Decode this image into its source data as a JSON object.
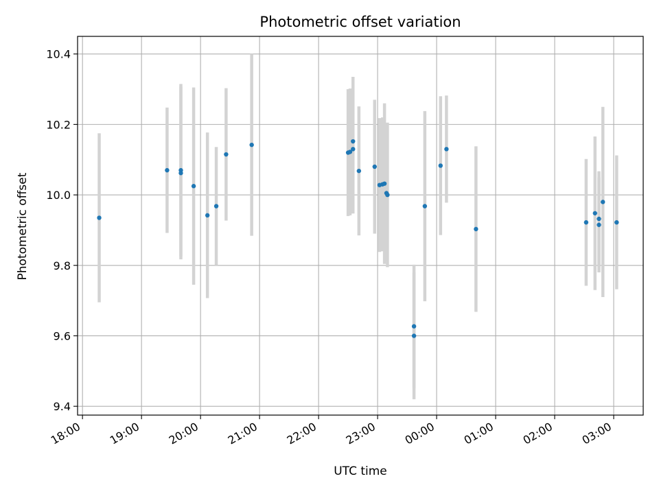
{
  "chart_data": {
    "type": "scatter",
    "title": "Photometric offset variation",
    "xlabel": "UTC time",
    "ylabel": "Photometric offset",
    "x_unit": "hours (datetime axis, crosses midnight)",
    "xlim": [
      "17:55",
      "03:30"
    ],
    "ylim": [
      9.375,
      10.45
    ],
    "x_ticks": [
      "18:00",
      "19:00",
      "20:00",
      "21:00",
      "22:00",
      "23:00",
      "00:00",
      "01:00",
      "02:00",
      "03:00"
    ],
    "y_ticks": [
      "9.4",
      "9.6",
      "9.8",
      "10.0",
      "10.2",
      "10.4"
    ],
    "grid": true,
    "colors": {
      "points": "#1f77b4",
      "error_bars": "#d3d3d3",
      "grid": "#b0b0b0"
    },
    "points": [
      {
        "t": "18:17",
        "y": 9.935,
        "err": 0.24
      },
      {
        "t": "19:26",
        "y": 10.07,
        "err": 0.178
      },
      {
        "t": "19:40",
        "y": 10.07,
        "err": 0.245
      },
      {
        "t": "19:40",
        "y": 10.062,
        "err": 0.245
      },
      {
        "t": "19:53",
        "y": 10.025,
        "err": 0.28
      },
      {
        "t": "20:07",
        "y": 9.942,
        "err": 0.235
      },
      {
        "t": "20:16",
        "y": 9.968,
        "err": 0.168
      },
      {
        "t": "20:26",
        "y": 10.115,
        "err": 0.188
      },
      {
        "t": "20:52",
        "y": 10.142,
        "err": 0.258
      },
      {
        "t": "22:30",
        "y": 10.12,
        "err": 0.18
      },
      {
        "t": "22:32",
        "y": 10.122,
        "err": 0.18
      },
      {
        "t": "22:35",
        "y": 10.152,
        "err": 0.183
      },
      {
        "t": "22:35",
        "y": 10.13,
        "err": 0.183
      },
      {
        "t": "22:41",
        "y": 10.068,
        "err": 0.183
      },
      {
        "t": "22:57",
        "y": 10.08,
        "err": 0.19
      },
      {
        "t": "23:02",
        "y": 10.028,
        "err": 0.19
      },
      {
        "t": "23:05",
        "y": 10.03,
        "err": 0.19
      },
      {
        "t": "23:07",
        "y": 10.032,
        "err": 0.228
      },
      {
        "t": "23:09",
        "y": 10.005,
        "err": 0.195
      },
      {
        "t": "23:10",
        "y": 10.0,
        "err": 0.205
      },
      {
        "t": "23:37",
        "y": 9.627,
        "err": 0.175
      },
      {
        "t": "23:37",
        "y": 9.6,
        "err": 0.18
      },
      {
        "t": "23:48",
        "y": 9.968,
        "err": 0.27
      },
      {
        "t": "00:04",
        "y": 10.083,
        "err": 0.197
      },
      {
        "t": "00:10",
        "y": 10.13,
        "err": 0.152
      },
      {
        "t": "00:40",
        "y": 9.903,
        "err": 0.235
      },
      {
        "t": "02:32",
        "y": 9.922,
        "err": 0.18
      },
      {
        "t": "02:41",
        "y": 9.948,
        "err": 0.218
      },
      {
        "t": "02:45",
        "y": 9.932,
        "err": 0.135
      },
      {
        "t": "02:45",
        "y": 9.915,
        "err": 0.135
      },
      {
        "t": "02:49",
        "y": 9.98,
        "err": 0.27
      },
      {
        "t": "03:03",
        "y": 9.922,
        "err": 0.19
      }
    ]
  }
}
